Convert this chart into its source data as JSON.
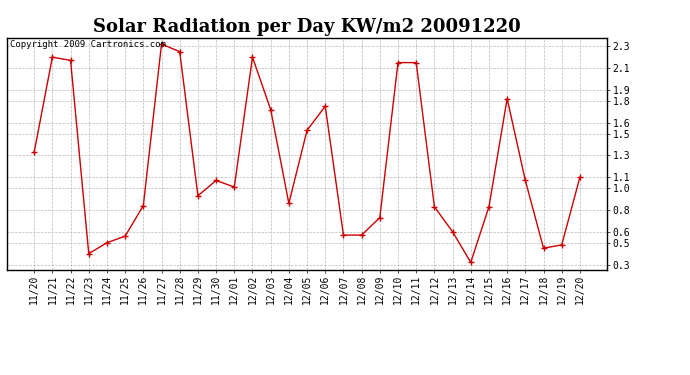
{
  "title": "Solar Radiation per Day KW/m2 20091220",
  "copyright": "Copyright 2009 Cartronics.com",
  "x_labels": [
    "11/20",
    "11/21",
    "11/22",
    "11/23",
    "11/24",
    "11/25",
    "11/26",
    "11/27",
    "11/28",
    "11/29",
    "11/30",
    "12/01",
    "12/02",
    "12/03",
    "12/04",
    "12/05",
    "12/06",
    "12/07",
    "12/08",
    "12/09",
    "12/10",
    "12/11",
    "12/12",
    "12/13",
    "12/14",
    "12/15",
    "12/16",
    "12/17",
    "12/18",
    "12/19",
    "12/20"
  ],
  "y_values": [
    1.33,
    2.2,
    2.17,
    0.4,
    0.5,
    0.56,
    0.84,
    2.32,
    2.25,
    0.93,
    1.07,
    1.01,
    2.2,
    1.72,
    0.86,
    1.53,
    1.75,
    0.57,
    0.57,
    0.73,
    2.15,
    2.15,
    0.83,
    0.6,
    0.32,
    0.83,
    1.82,
    1.07,
    0.45,
    0.48,
    1.1
  ],
  "line_color": "#cc0000",
  "marker_color": "#cc0000",
  "bg_color": "#ffffff",
  "grid_color": "#bbbbbb",
  "ylim": [
    0.25,
    2.38
  ],
  "yticks": [
    0.3,
    0.5,
    0.6,
    0.8,
    1.0,
    1.1,
    1.3,
    1.5,
    1.6,
    1.8,
    1.9,
    2.1,
    2.3
  ],
  "title_fontsize": 13,
  "copyright_fontsize": 6.5,
  "tick_fontsize": 7,
  "marker_size": 5
}
